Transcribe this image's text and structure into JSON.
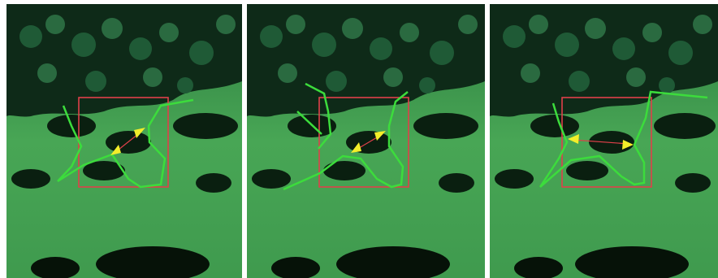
{
  "figure": {
    "panels": [
      {
        "id": "panel-1",
        "box_color": "#e0404a",
        "line_color": "#3cdc3c",
        "arrow_color": "#f2ee2a"
      },
      {
        "id": "panel-2",
        "box_color": "#e0404a",
        "line_color": "#3cdc3c",
        "arrow_color": "#f2ee2a"
      },
      {
        "id": "panel-3",
        "box_color": "#e0404a",
        "line_color": "#3cdc3c",
        "arrow_color": "#f2ee2a"
      }
    ],
    "palette": {
      "forest_dark": "#0e2a18",
      "forest_mid": "#1f5a36",
      "meadow": "#3f9a4e",
      "meadow_light": "#5cb864",
      "shadow": "#061208"
    }
  }
}
